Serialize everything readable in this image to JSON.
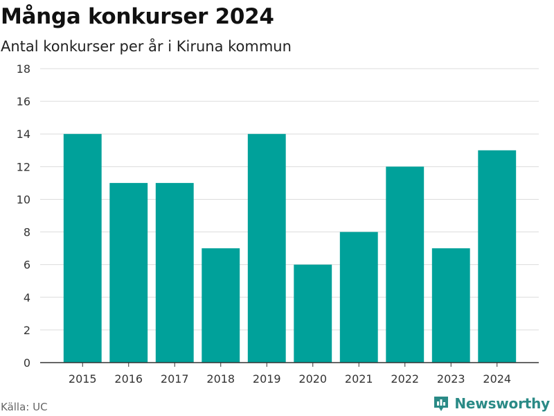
{
  "header": {
    "title": "Många konkurser 2024",
    "subtitle": "Antal konkurser per år i Kiruna kommun"
  },
  "footer": {
    "source": "Källa: UC",
    "brand": "Newsworthy"
  },
  "colors": {
    "bar": "#00A19A",
    "grid": "#dcdcdc",
    "axis": "#333333",
    "brand": "#2a8a86"
  },
  "chart_data": {
    "type": "bar",
    "title": "Många konkurser 2024",
    "subtitle": "Antal konkurser per år i Kiruna kommun",
    "categories": [
      "2015",
      "2016",
      "2017",
      "2018",
      "2019",
      "2020",
      "2021",
      "2022",
      "2023",
      "2024"
    ],
    "values": [
      14,
      11,
      11,
      7,
      14,
      6,
      8,
      12,
      7,
      13
    ],
    "ylim": [
      0,
      18
    ],
    "yticks": [
      0,
      2,
      4,
      6,
      8,
      10,
      12,
      14,
      16,
      18
    ],
    "grid": true,
    "legend": "none"
  }
}
